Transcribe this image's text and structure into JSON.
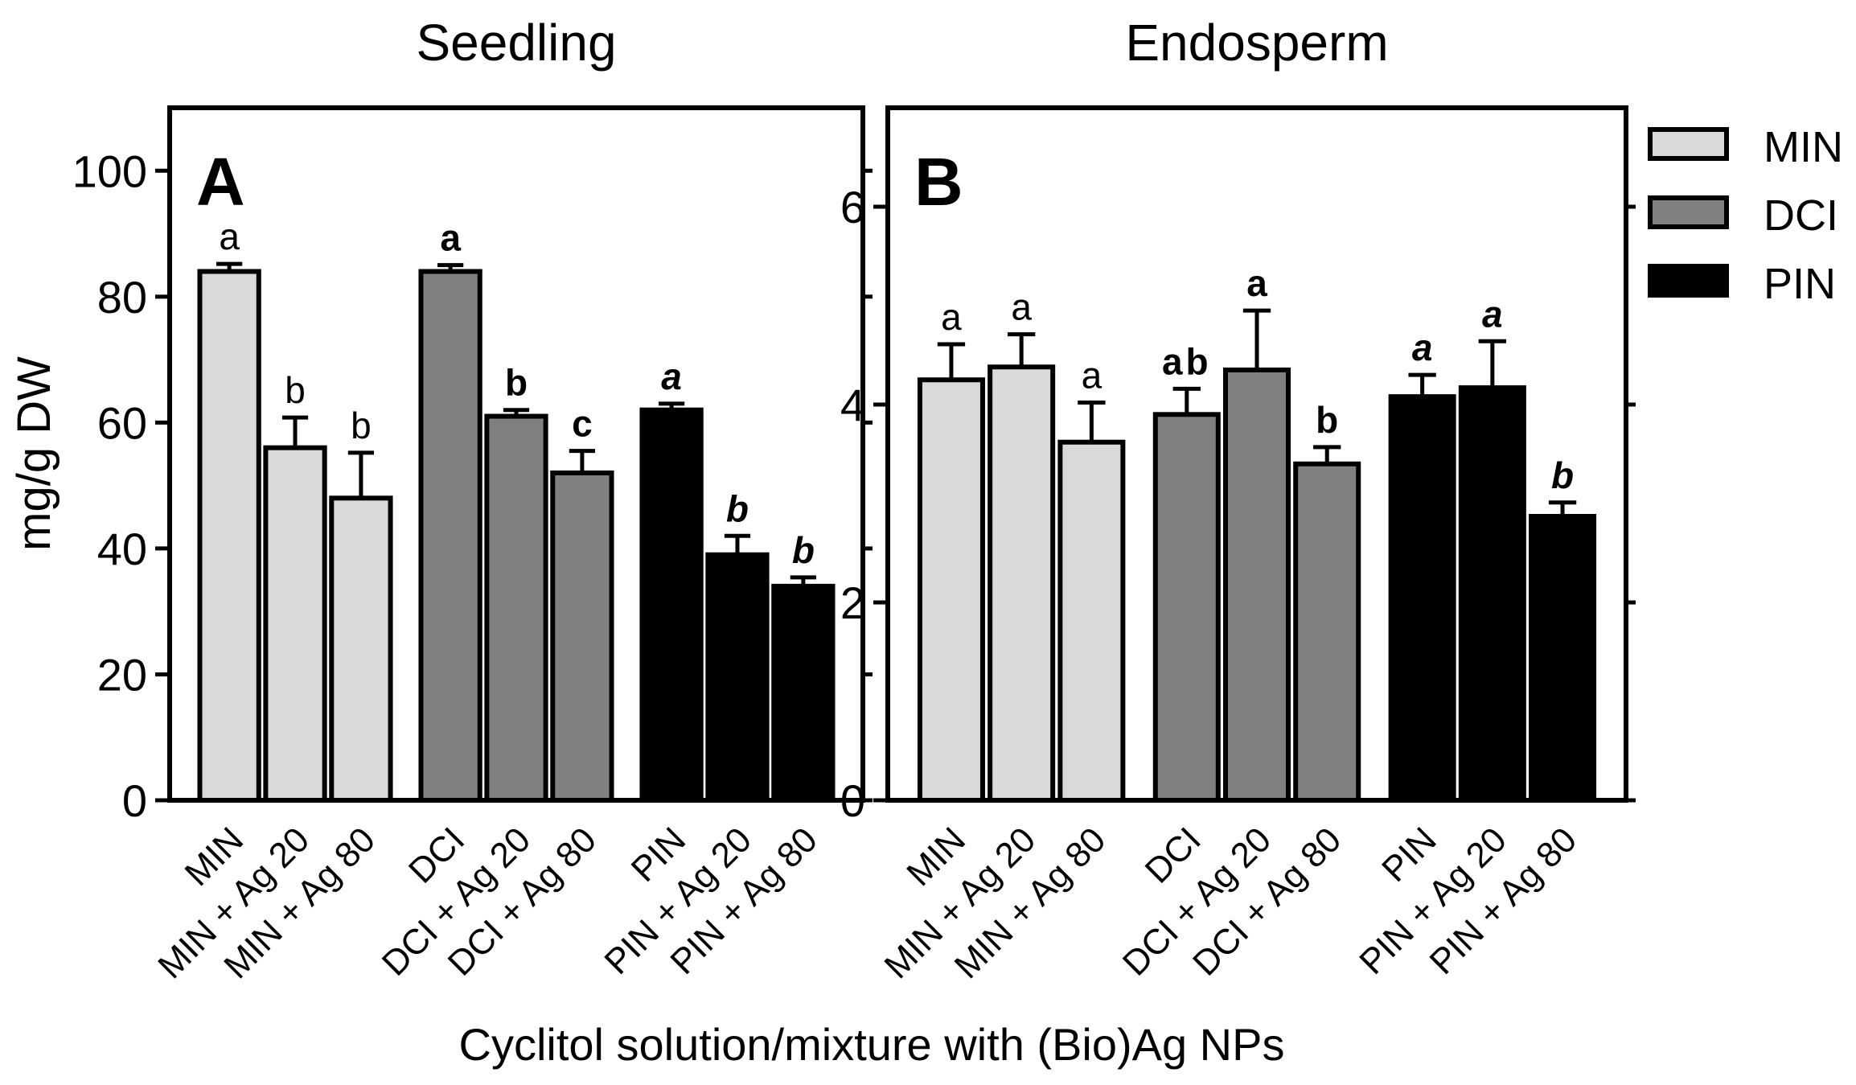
{
  "chart_data": {
    "type": "bar",
    "ylabel": "mg/g DW",
    "xlabel": "Cyclitol solution/mixture with (Bio)Ag NPs",
    "legend": {
      "position": "right",
      "entries": [
        {
          "name": "MIN",
          "color": "#d9d9d9"
        },
        {
          "name": "DCI",
          "color": "#808080"
        },
        {
          "name": "PIN",
          "color": "#000000"
        }
      ]
    },
    "panels": [
      {
        "title": "Seedling",
        "panel_label": "A",
        "ylim": [
          0,
          110
        ],
        "yticks": [
          "0",
          "20",
          "40",
          "60",
          "80",
          "100"
        ],
        "bars": [
          {
            "category": "MIN",
            "group": "MIN",
            "value": 84,
            "error": 1.2,
            "letter": "a"
          },
          {
            "category": "MIN + Ag 20",
            "group": "MIN",
            "value": 56,
            "error": 4.8,
            "letter": "b"
          },
          {
            "category": "MIN + Ag 80",
            "group": "MIN",
            "value": 48,
            "error": 7.2,
            "letter": "b"
          },
          {
            "category": "DCI",
            "group": "DCI",
            "value": 84,
            "error": 1.0,
            "letter": "a"
          },
          {
            "category": "DCI + Ag 20",
            "group": "DCI",
            "value": 61,
            "error": 1.0,
            "letter": "b"
          },
          {
            "category": "DCI + Ag 80",
            "group": "DCI",
            "value": 52,
            "error": 3.5,
            "letter": "c"
          },
          {
            "category": "PIN",
            "group": "PIN",
            "value": 62,
            "error": 1.0,
            "letter": "a"
          },
          {
            "category": "PIN + Ag 20",
            "group": "PIN",
            "value": 39,
            "error": 3.0,
            "letter": "b"
          },
          {
            "category": "PIN + Ag 80",
            "group": "PIN",
            "value": 34,
            "error": 1.4,
            "letter": "b"
          }
        ]
      },
      {
        "title": "Endosperm",
        "panel_label": "B",
        "ylim": [
          0,
          7
        ],
        "yticks": [
          "0",
          "2",
          "4",
          "6"
        ],
        "bars": [
          {
            "category": "MIN",
            "group": "MIN",
            "value": 4.25,
            "error": 0.36,
            "letter": "a"
          },
          {
            "category": "MIN + Ag 20",
            "group": "MIN",
            "value": 4.38,
            "error": 0.33,
            "letter": "a"
          },
          {
            "category": "MIN + Ag 80",
            "group": "MIN",
            "value": 3.62,
            "error": 0.4,
            "letter": "a"
          },
          {
            "category": "DCI",
            "group": "DCI",
            "value": 3.9,
            "error": 0.26,
            "letter": "ab"
          },
          {
            "category": "DCI + Ag 20",
            "group": "DCI",
            "value": 4.35,
            "error": 0.6,
            "letter": "a"
          },
          {
            "category": "DCI + Ag 80",
            "group": "DCI",
            "value": 3.4,
            "error": 0.17,
            "letter": "b"
          },
          {
            "category": "PIN",
            "group": "PIN",
            "value": 4.08,
            "error": 0.22,
            "letter": "a"
          },
          {
            "category": "PIN + Ag 20",
            "group": "PIN",
            "value": 4.17,
            "error": 0.47,
            "letter": "a"
          },
          {
            "category": "PIN + Ag 80",
            "group": "PIN",
            "value": 2.87,
            "error": 0.14,
            "letter": "b"
          }
        ]
      }
    ]
  }
}
